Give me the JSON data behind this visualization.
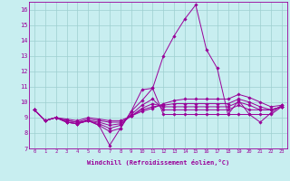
{
  "xlabel": "Windchill (Refroidissement éolien,°C)",
  "ylabel": "",
  "xlim": [
    -0.5,
    23.5
  ],
  "ylim": [
    7,
    16.5
  ],
  "xticks": [
    0,
    1,
    2,
    3,
    4,
    5,
    6,
    7,
    8,
    9,
    10,
    11,
    12,
    13,
    14,
    15,
    16,
    17,
    18,
    19,
    20,
    21,
    22,
    23
  ],
  "yticks": [
    7,
    8,
    9,
    10,
    11,
    12,
    13,
    14,
    15,
    16
  ],
  "background_color": "#c8eef0",
  "grid_color": "#9ecfcf",
  "line_color": "#990099",
  "lines": [
    [
      9.5,
      8.8,
      9.0,
      8.7,
      8.6,
      8.8,
      8.5,
      7.2,
      8.3,
      9.4,
      10.8,
      10.9,
      13.0,
      14.3,
      15.4,
      16.3,
      13.4,
      12.2,
      9.2,
      10.1,
      9.2,
      8.7,
      9.3,
      9.8
    ],
    [
      9.5,
      8.8,
      9.0,
      8.7,
      8.6,
      8.8,
      8.5,
      8.1,
      8.3,
      9.4,
      10.1,
      10.9,
      9.2,
      9.2,
      9.2,
      9.2,
      9.2,
      9.2,
      9.2,
      9.2,
      9.2,
      9.2,
      9.2,
      9.7
    ],
    [
      9.5,
      8.8,
      9.0,
      8.7,
      8.6,
      8.8,
      8.6,
      8.3,
      8.5,
      9.2,
      9.8,
      10.2,
      9.5,
      9.5,
      9.5,
      9.5,
      9.5,
      9.5,
      9.5,
      9.8,
      9.5,
      9.5,
      9.5,
      9.7
    ],
    [
      9.5,
      8.8,
      9.0,
      8.8,
      8.7,
      8.8,
      8.7,
      8.5,
      8.6,
      9.1,
      9.6,
      9.9,
      9.7,
      9.7,
      9.7,
      9.7,
      9.7,
      9.7,
      9.7,
      10.0,
      9.8,
      9.5,
      9.5,
      9.7
    ],
    [
      9.5,
      8.8,
      9.0,
      8.8,
      8.7,
      8.9,
      8.8,
      8.7,
      8.7,
      9.1,
      9.5,
      9.7,
      9.8,
      9.9,
      9.9,
      9.9,
      9.9,
      9.9,
      9.9,
      10.2,
      10.0,
      9.7,
      9.5,
      9.7
    ],
    [
      9.5,
      8.8,
      9.0,
      8.9,
      8.8,
      9.0,
      8.9,
      8.8,
      8.8,
      9.1,
      9.4,
      9.6,
      9.9,
      10.1,
      10.2,
      10.2,
      10.2,
      10.2,
      10.2,
      10.5,
      10.3,
      10.0,
      9.7,
      9.8
    ]
  ]
}
